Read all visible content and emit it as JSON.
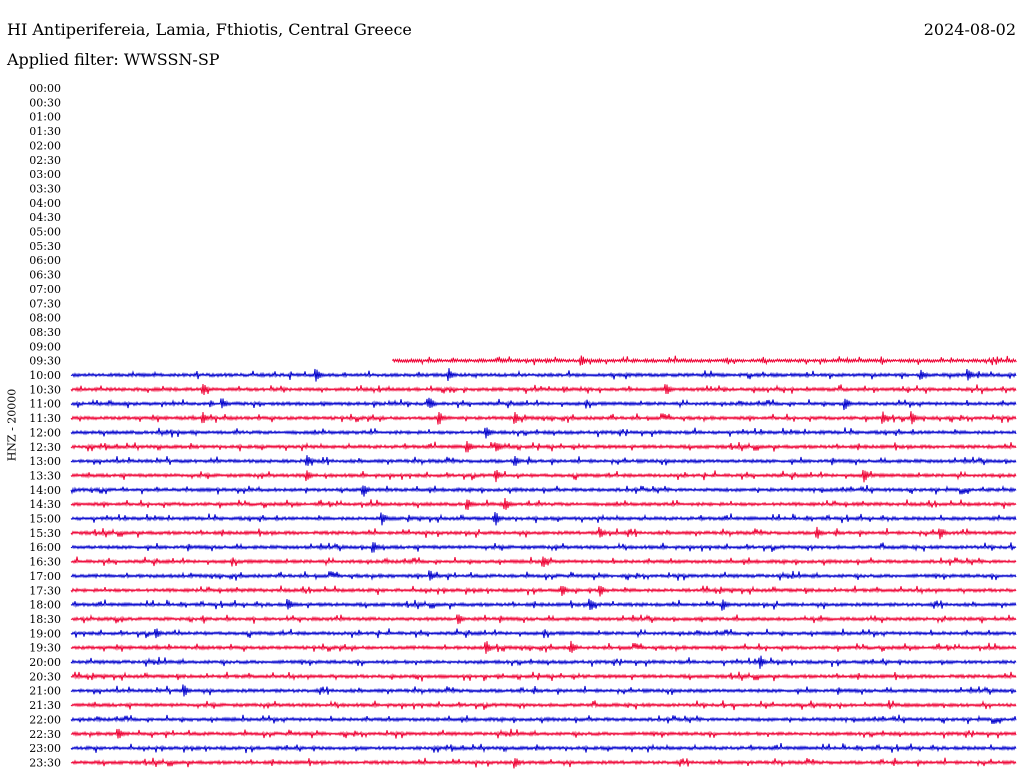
{
  "header": {
    "station": "HI Antiperifereia, Lamia, Fthiotis, Central Greece",
    "date": "2024-08-02",
    "filter": "Applied filter: WWSSN-SP"
  },
  "axis": {
    "ylabel": "HNZ - 20000"
  },
  "chart_data": {
    "type": "line",
    "title": "HI Antiperifereia, Lamia, Fthiotis, Central Greece",
    "date": "2024-08-02",
    "filter": "WWSSN-SP",
    "ylabel": "HNZ - 20000",
    "row_labels": [
      "00:00",
      "00:30",
      "01:00",
      "01:30",
      "02:00",
      "02:30",
      "03:00",
      "03:30",
      "04:00",
      "04:30",
      "05:00",
      "05:30",
      "06:00",
      "06:30",
      "07:00",
      "07:30",
      "08:00",
      "08:30",
      "09:00",
      "09:30",
      "10:00",
      "10:30",
      "11:00",
      "11:30",
      "12:00",
      "12:30",
      "13:00",
      "13:30",
      "14:00",
      "14:30",
      "15:00",
      "15:30",
      "16:00",
      "16:30",
      "17:00",
      "17:30",
      "18:00",
      "18:30",
      "19:00",
      "19:30",
      "20:00",
      "20:30",
      "21:00",
      "21:30",
      "22:00",
      "22:30",
      "23:00",
      "23:30"
    ],
    "colors": [
      "#0000cc",
      "#ee0033"
    ],
    "traces": [
      {
        "label": "09:30",
        "start_fraction": 0.34,
        "color": "#ee0033",
        "events": [
          0.54
        ]
      },
      {
        "label": "10:00",
        "start_fraction": 0,
        "color": "#0000cc",
        "events": [
          0.26,
          0.4,
          0.9,
          0.95
        ]
      },
      {
        "label": "10:30",
        "start_fraction": 0,
        "color": "#ee0033",
        "events": [
          0.14,
          0.63
        ]
      },
      {
        "label": "11:00",
        "start_fraction": 0,
        "color": "#0000cc",
        "events": [
          0.16,
          0.38,
          0.82
        ]
      },
      {
        "label": "11:30",
        "start_fraction": 0,
        "color": "#ee0033",
        "events": [
          0.14,
          0.39,
          0.47,
          0.86,
          0.89
        ]
      },
      {
        "label": "12:00",
        "start_fraction": 0,
        "color": "#0000cc",
        "events": [
          0.44
        ]
      },
      {
        "label": "12:30",
        "start_fraction": 0,
        "color": "#ee0033",
        "events": [
          0.42,
          0.45
        ]
      },
      {
        "label": "13:00",
        "start_fraction": 0,
        "color": "#0000cc",
        "events": [
          0.25,
          0.47
        ]
      },
      {
        "label": "13:30",
        "start_fraction": 0,
        "color": "#ee0033",
        "events": [
          0.25,
          0.45,
          0.84
        ]
      },
      {
        "label": "14:00",
        "start_fraction": 0,
        "color": "#0000cc",
        "events": [
          0.31
        ]
      },
      {
        "label": "14:30",
        "start_fraction": 0,
        "color": "#ee0033",
        "events": [
          0.42,
          0.46
        ]
      },
      {
        "label": "15:00",
        "start_fraction": 0,
        "color": "#0000cc",
        "events": [
          0.33,
          0.45
        ]
      },
      {
        "label": "15:30",
        "start_fraction": 0,
        "color": "#ee0033",
        "events": [
          0.56,
          0.79,
          0.92
        ]
      },
      {
        "label": "16:00",
        "start_fraction": 0,
        "color": "#0000cc",
        "events": [
          0.32
        ]
      },
      {
        "label": "16:30",
        "start_fraction": 0,
        "color": "#ee0033",
        "events": [
          0.5
        ]
      },
      {
        "label": "17:00",
        "start_fraction": 0,
        "color": "#0000cc",
        "events": [
          0.38
        ]
      },
      {
        "label": "17:30",
        "start_fraction": 0,
        "color": "#ee0033",
        "events": [
          0.52,
          0.56
        ]
      },
      {
        "label": "18:00",
        "start_fraction": 0,
        "color": "#0000cc",
        "events": [
          0.23,
          0.55,
          0.69
        ]
      },
      {
        "label": "18:30",
        "start_fraction": 0,
        "color": "#ee0033",
        "events": [
          0.41
        ]
      },
      {
        "label": "19:00",
        "start_fraction": 0,
        "color": "#0000cc",
        "events": [
          0.09
        ]
      },
      {
        "label": "19:30",
        "start_fraction": 0,
        "color": "#ee0033",
        "events": [
          0.44,
          0.53
        ]
      },
      {
        "label": "20:00",
        "start_fraction": 0,
        "color": "#0000cc",
        "events": [
          0.73
        ]
      },
      {
        "label": "20:30",
        "start_fraction": 0,
        "color": "#ee0033",
        "events": []
      },
      {
        "label": "21:00",
        "start_fraction": 0,
        "color": "#0000cc",
        "events": [
          0.12
        ]
      },
      {
        "label": "21:30",
        "start_fraction": 0,
        "color": "#ee0033",
        "events": []
      },
      {
        "label": "22:00",
        "start_fraction": 0,
        "color": "#0000cc",
        "events": []
      },
      {
        "label": "22:30",
        "start_fraction": 0,
        "color": "#ee0033",
        "events": [
          0.05
        ]
      },
      {
        "label": "23:00",
        "start_fraction": 0,
        "color": "#0000cc",
        "events": []
      },
      {
        "label": "23:30",
        "start_fraction": 0,
        "color": "#ee0033",
        "events": [
          0.47
        ]
      }
    ]
  }
}
